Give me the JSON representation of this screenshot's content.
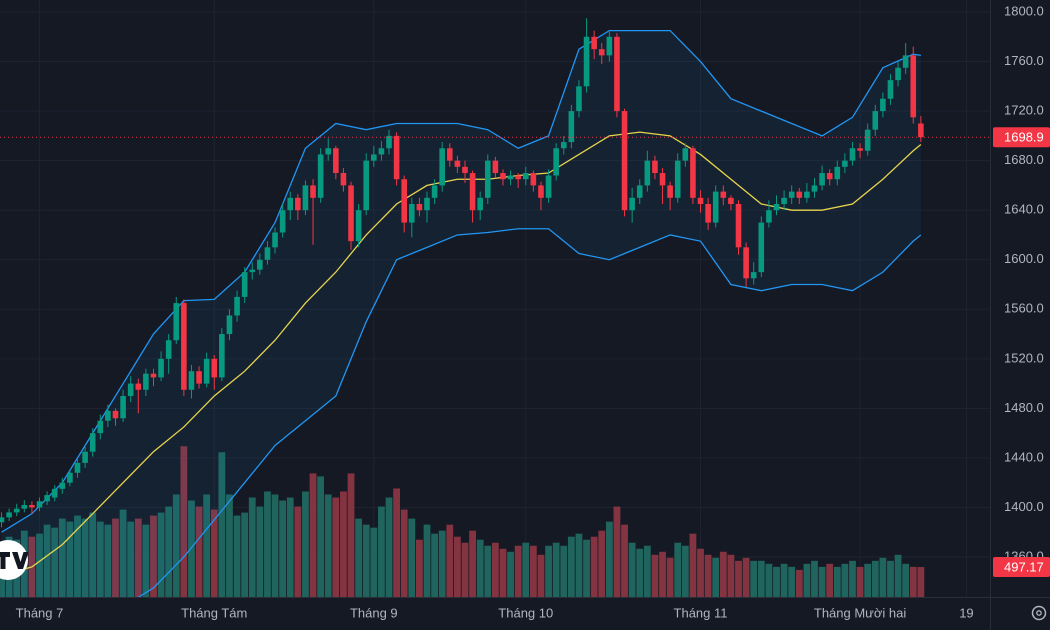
{
  "chart_data": {
    "type": "candlestick",
    "up_color": "#089981",
    "down_color": "#f23645",
    "vol_up_color": "#1f645d",
    "vol_down_color": "#843340",
    "grid": true,
    "ylim": [
      1327.7,
      1809.7
    ],
    "yticks": [
      {
        "value": 1360,
        "label": "1360.0"
      },
      {
        "value": 1400,
        "label": "1400.0"
      },
      {
        "value": 1440,
        "label": "1440.0"
      },
      {
        "value": 1480,
        "label": "1480.0"
      },
      {
        "value": 1520,
        "label": "1520.0"
      },
      {
        "value": 1560,
        "label": "1560.0"
      },
      {
        "value": 1600,
        "label": "1600.0"
      },
      {
        "value": 1640,
        "label": "1640.0"
      },
      {
        "value": 1680,
        "label": "1680.0"
      },
      {
        "value": 1720,
        "label": "1720.0"
      },
      {
        "value": 1760,
        "label": "1760.0"
      },
      {
        "value": 1800,
        "label": "1800.0"
      }
    ],
    "xlim": [
      -0.2,
      130.1
    ],
    "xticks": [
      {
        "value": 5,
        "label": "Tháng 7"
      },
      {
        "value": 28,
        "label": "Tháng Tám"
      },
      {
        "value": 49,
        "label": "Tháng 9"
      },
      {
        "value": 69,
        "label": "Tháng 10"
      },
      {
        "value": 92,
        "label": "Tháng 11"
      },
      {
        "value": 113,
        "label": "Tháng Mười hai"
      },
      {
        "value": 127,
        "label": "19"
      }
    ],
    "vlim": [
      0,
      9900
    ],
    "last_price": 1698.9,
    "candles": [
      [
        1388,
        1396,
        1384,
        1392
      ],
      [
        1392,
        1399,
        1389,
        1396
      ],
      [
        1396,
        1403,
        1393,
        1399
      ],
      [
        1399,
        1406,
        1396,
        1402
      ],
      [
        1402,
        1405,
        1395,
        1400
      ],
      [
        1400,
        1408,
        1397,
        1405
      ],
      [
        1405,
        1413,
        1402,
        1410
      ],
      [
        1408,
        1418,
        1405,
        1415
      ],
      [
        1415,
        1424,
        1411,
        1420
      ],
      [
        1420,
        1431,
        1417,
        1428
      ],
      [
        1428,
        1440,
        1424,
        1436
      ],
      [
        1436,
        1449,
        1432,
        1445
      ],
      [
        1445,
        1464,
        1441,
        1460
      ],
      [
        1460,
        1475,
        1455,
        1470
      ],
      [
        1470,
        1483,
        1465,
        1478
      ],
      [
        1478,
        1480,
        1466,
        1472
      ],
      [
        1472,
        1495,
        1469,
        1490
      ],
      [
        1490,
        1506,
        1485,
        1500
      ],
      [
        1500,
        1504,
        1476,
        1495
      ],
      [
        1495,
        1512,
        1490,
        1508
      ],
      [
        1508,
        1512,
        1498,
        1505
      ],
      [
        1505,
        1526,
        1502,
        1520
      ],
      [
        1520,
        1540,
        1508,
        1535
      ],
      [
        1535,
        1570,
        1532,
        1565
      ],
      [
        1565,
        1568,
        1490,
        1495
      ],
      [
        1495,
        1515,
        1488,
        1510
      ],
      [
        1510,
        1514,
        1496,
        1500
      ],
      [
        1500,
        1525,
        1497,
        1520
      ],
      [
        1520,
        1523,
        1495,
        1505
      ],
      [
        1505,
        1545,
        1502,
        1540
      ],
      [
        1540,
        1560,
        1535,
        1555
      ],
      [
        1555,
        1575,
        1550,
        1570
      ],
      [
        1570,
        1594,
        1565,
        1590
      ],
      [
        1590,
        1598,
        1584,
        1592
      ],
      [
        1592,
        1605,
        1588,
        1600
      ],
      [
        1600,
        1615,
        1596,
        1610
      ],
      [
        1610,
        1626,
        1605,
        1622
      ],
      [
        1622,
        1645,
        1618,
        1640
      ],
      [
        1640,
        1655,
        1632,
        1650
      ],
      [
        1650,
        1653,
        1632,
        1640
      ],
      [
        1640,
        1664,
        1636,
        1660
      ],
      [
        1660,
        1665,
        1612,
        1650
      ],
      [
        1650,
        1690,
        1646,
        1685
      ],
      [
        1685,
        1698,
        1680,
        1690
      ],
      [
        1690,
        1692,
        1665,
        1670
      ],
      [
        1670,
        1674,
        1655,
        1660
      ],
      [
        1660,
        1663,
        1608,
        1615
      ],
      [
        1615,
        1645,
        1610,
        1640
      ],
      [
        1640,
        1686,
        1636,
        1680
      ],
      [
        1680,
        1692,
        1675,
        1685
      ],
      [
        1685,
        1696,
        1680,
        1690
      ],
      [
        1690,
        1705,
        1685,
        1700
      ],
      [
        1700,
        1703,
        1660,
        1665
      ],
      [
        1665,
        1668,
        1622,
        1630
      ],
      [
        1630,
        1650,
        1618,
        1645
      ],
      [
        1645,
        1650,
        1635,
        1640
      ],
      [
        1640,
        1655,
        1630,
        1650
      ],
      [
        1650,
        1665,
        1645,
        1660
      ],
      [
        1660,
        1695,
        1655,
        1690
      ],
      [
        1690,
        1694,
        1675,
        1680
      ],
      [
        1680,
        1684,
        1670,
        1675
      ],
      [
        1675,
        1680,
        1662,
        1670
      ],
      [
        1670,
        1672,
        1630,
        1640
      ],
      [
        1640,
        1655,
        1632,
        1650
      ],
      [
        1650,
        1685,
        1645,
        1680
      ],
      [
        1680,
        1683,
        1666,
        1670
      ],
      [
        1670,
        1673,
        1660,
        1665
      ],
      [
        1665,
        1672,
        1660,
        1668
      ],
      [
        1668,
        1670,
        1658,
        1665
      ],
      [
        1665,
        1675,
        1660,
        1670
      ],
      [
        1670,
        1672,
        1655,
        1660
      ],
      [
        1660,
        1663,
        1640,
        1650
      ],
      [
        1650,
        1673,
        1646,
        1668
      ],
      [
        1668,
        1694,
        1664,
        1690
      ],
      [
        1690,
        1700,
        1685,
        1695
      ],
      [
        1695,
        1725,
        1690,
        1720
      ],
      [
        1720,
        1745,
        1715,
        1740
      ],
      [
        1740,
        1795,
        1735,
        1780
      ],
      [
        1780,
        1785,
        1762,
        1770
      ],
      [
        1770,
        1775,
        1758,
        1765
      ],
      [
        1765,
        1784,
        1760,
        1780
      ],
      [
        1780,
        1783,
        1715,
        1720
      ],
      [
        1720,
        1722,
        1635,
        1640
      ],
      [
        1640,
        1658,
        1630,
        1650
      ],
      [
        1650,
        1665,
        1645,
        1660
      ],
      [
        1660,
        1688,
        1655,
        1680
      ],
      [
        1680,
        1684,
        1665,
        1670
      ],
      [
        1670,
        1674,
        1645,
        1660
      ],
      [
        1660,
        1663,
        1640,
        1650
      ],
      [
        1650,
        1686,
        1646,
        1680
      ],
      [
        1680,
        1694,
        1675,
        1690
      ],
      [
        1690,
        1692,
        1645,
        1650
      ],
      [
        1650,
        1656,
        1638,
        1645
      ],
      [
        1645,
        1650,
        1624,
        1630
      ],
      [
        1630,
        1660,
        1626,
        1655
      ],
      [
        1655,
        1660,
        1644,
        1650
      ],
      [
        1650,
        1652,
        1640,
        1645
      ],
      [
        1645,
        1648,
        1604,
        1610
      ],
      [
        1610,
        1614,
        1578,
        1585
      ],
      [
        1585,
        1598,
        1580,
        1590
      ],
      [
        1590,
        1635,
        1586,
        1630
      ],
      [
        1630,
        1648,
        1626,
        1640
      ],
      [
        1640,
        1652,
        1636,
        1645
      ],
      [
        1645,
        1656,
        1640,
        1650
      ],
      [
        1650,
        1660,
        1645,
        1655
      ],
      [
        1655,
        1658,
        1645,
        1650
      ],
      [
        1650,
        1662,
        1646,
        1655
      ],
      [
        1655,
        1666,
        1650,
        1660
      ],
      [
        1660,
        1676,
        1656,
        1670
      ],
      [
        1670,
        1673,
        1660,
        1665
      ],
      [
        1665,
        1680,
        1660,
        1675
      ],
      [
        1675,
        1686,
        1670,
        1680
      ],
      [
        1680,
        1695,
        1676,
        1690
      ],
      [
        1690,
        1694,
        1682,
        1688
      ],
      [
        1688,
        1710,
        1684,
        1705
      ],
      [
        1705,
        1725,
        1700,
        1720
      ],
      [
        1720,
        1735,
        1715,
        1730
      ],
      [
        1730,
        1750,
        1725,
        1745
      ],
      [
        1745,
        1760,
        1740,
        1755
      ],
      [
        1755,
        1775,
        1750,
        1765
      ],
      [
        1765,
        1772,
        1710,
        1715
      ],
      [
        1710,
        1716,
        1695,
        1698.9
      ]
    ],
    "volumes": [
      900,
      1000,
      950,
      1100,
      1000,
      1050,
      1200,
      1150,
      1300,
      1250,
      1350,
      1300,
      1400,
      1250,
      1200,
      1300,
      1450,
      1250,
      1300,
      1200,
      1350,
      1400,
      1500,
      1700,
      2500,
      1600,
      1500,
      1700,
      1450,
      2400,
      1700,
      1350,
      1400,
      1650,
      1500,
      1750,
      1700,
      1600,
      1650,
      1500,
      1750,
      2050,
      2000,
      1700,
      1650,
      1750,
      2050,
      1300,
      1200,
      1150,
      1500,
      1650,
      1800,
      1450,
      1300,
      950,
      1200,
      1050,
      1100,
      1200,
      1000,
      900,
      1100,
      950,
      850,
      900,
      800,
      750,
      850,
      900,
      850,
      700,
      850,
      900,
      850,
      1000,
      1050,
      950,
      1000,
      1100,
      1250,
      1500,
      1200,
      900,
      800,
      850,
      700,
      750,
      650,
      900,
      850,
      1050,
      800,
      700,
      650,
      750,
      700,
      600,
      650,
      600,
      600,
      550,
      500,
      550,
      500,
      450,
      550,
      600,
      500,
      550,
      500,
      550,
      600,
      500,
      550,
      600,
      650,
      600,
      700,
      550,
      500,
      497.17
    ],
    "bands": {
      "line_color": "#2196f3",
      "middle_color": "#e8d44d",
      "fill_color": "#2196f3",
      "x": [
        0,
        4,
        8,
        12,
        16,
        20,
        24,
        28,
        32,
        36,
        40,
        44,
        48,
        52,
        56,
        60,
        64,
        68,
        72,
        76,
        80,
        84,
        88,
        92,
        96,
        100,
        104,
        108,
        112,
        116,
        120,
        121
      ],
      "upper": [
        1380,
        1395,
        1420,
        1460,
        1500,
        1540,
        1567,
        1568,
        1590,
        1630,
        1690,
        1710,
        1705,
        1710,
        1710,
        1710,
        1705,
        1690,
        1700,
        1770,
        1785,
        1785,
        1785,
        1760,
        1730,
        1720,
        1710,
        1700,
        1715,
        1755,
        1766,
        1765
      ],
      "middle": [
        1345,
        1352,
        1370,
        1395,
        1420,
        1445,
        1465,
        1490,
        1510,
        1535,
        1565,
        1590,
        1620,
        1645,
        1660,
        1665,
        1665,
        1668,
        1670,
        1685,
        1700,
        1703,
        1700,
        1685,
        1665,
        1645,
        1640,
        1640,
        1645,
        1665,
        1688,
        1693
      ],
      "lower": [
        1280,
        1290,
        1300,
        1310,
        1320,
        1335,
        1360,
        1390,
        1420,
        1450,
        1470,
        1490,
        1550,
        1600,
        1610,
        1620,
        1622,
        1625,
        1625,
        1605,
        1600,
        1610,
        1620,
        1615,
        1580,
        1575,
        1580,
        1580,
        1575,
        1590,
        1615,
        1620
      ]
    }
  }
}
